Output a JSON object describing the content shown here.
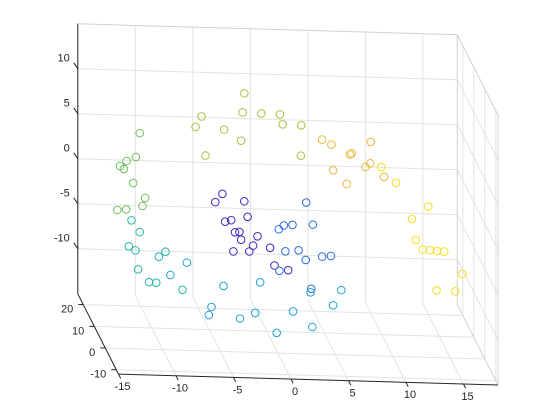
{
  "chart_data": {
    "type": "scatter3d",
    "xlim": [
      -15,
      18
    ],
    "ylim": [
      -12,
      25
    ],
    "zlim": [
      -15,
      15
    ],
    "xticks": [
      -15,
      -10,
      -5,
      0,
      5,
      10,
      15
    ],
    "yticks": [
      -10,
      0,
      10,
      20
    ],
    "zticks": [
      -10,
      -5,
      0,
      5,
      10
    ],
    "grid": true,
    "series": [
      {
        "color": "#3e26c0",
        "x": [
          -3,
          -2,
          -1,
          -3,
          -2,
          -1,
          -3,
          0,
          0,
          -1,
          -2,
          -4,
          -4,
          1,
          -1,
          -3
        ],
        "y": [
          2,
          5,
          8,
          11,
          14,
          17,
          19,
          3,
          7,
          12,
          18,
          6,
          15,
          1,
          20,
          9
        ],
        "z": [
          -3,
          -5,
          -4,
          -3,
          -5,
          -4,
          -2,
          -6,
          -5,
          -6,
          -6,
          -2,
          -2,
          -6,
          -3,
          -6
        ]
      },
      {
        "color": "#2a6de0",
        "x": [
          2,
          3,
          4,
          2,
          3,
          5,
          1,
          4,
          2,
          5,
          3,
          1
        ],
        "y": [
          2,
          6,
          10,
          14,
          18,
          4,
          9,
          16,
          20,
          12,
          1,
          5
        ],
        "z": [
          -4,
          -6,
          -3,
          -7,
          -5,
          -5,
          -8,
          -2,
          -6,
          -7,
          -8,
          -2
        ]
      },
      {
        "color": "#1ba3d6",
        "x": [
          -6,
          -3,
          0,
          3,
          5,
          -5,
          -1,
          2,
          -8,
          -3,
          0,
          4,
          6,
          -6
        ],
        "y": [
          0,
          3,
          1,
          0,
          2,
          8,
          10,
          7,
          14,
          18,
          16,
          12,
          5,
          20
        ],
        "z": [
          -11,
          -12,
          -13,
          -12,
          -10,
          -12,
          -13,
          -12,
          -10,
          -12,
          -11,
          -11,
          -9,
          -10
        ]
      },
      {
        "color": "#22b8a6",
        "x": [
          -11,
          -10,
          -12,
          -9,
          -11,
          -10,
          -12,
          -9,
          -8,
          -11
        ],
        "y": [
          2,
          6,
          10,
          14,
          18,
          21,
          4,
          8,
          3,
          12
        ],
        "z": [
          -8,
          -9,
          -6,
          -8,
          -5,
          -7,
          -5,
          -6,
          -9,
          -9
        ]
      },
      {
        "color": "#6cbf5a",
        "x": [
          -13,
          -12,
          -13,
          -11,
          -12,
          -10,
          -13,
          -11,
          -12,
          -10
        ],
        "y": [
          2,
          6,
          10,
          14,
          18,
          21,
          4,
          8,
          12,
          16
        ],
        "z": [
          0,
          2,
          -2,
          3,
          1,
          4,
          4,
          -1,
          3,
          -2
        ]
      },
      {
        "color": "#a9c23a",
        "x": [
          -6,
          -4,
          -2,
          0,
          2,
          -5,
          -3,
          1,
          3,
          -1,
          -6,
          2
        ],
        "y": [
          3,
          7,
          11,
          15,
          19,
          17,
          2,
          6,
          10,
          20,
          12,
          0
        ],
        "z": [
          6,
          8,
          9,
          8,
          7,
          7,
          8,
          9,
          8,
          9,
          7,
          7
        ]
      },
      {
        "color": "#eab83a",
        "x": [
          5,
          7,
          9,
          6,
          8,
          10,
          6,
          8,
          10,
          5
        ],
        "y": [
          2,
          6,
          10,
          14,
          18,
          20,
          0,
          4,
          8,
          12
        ],
        "z": [
          5,
          6,
          4,
          5,
          3,
          4,
          4,
          5,
          3,
          6
        ]
      },
      {
        "color": "#f2e01c",
        "x": [
          12,
          13,
          14,
          15,
          16,
          15,
          14,
          16,
          17,
          13,
          12,
          11
        ],
        "y": [
          0,
          4,
          8,
          12,
          16,
          20,
          2,
          6,
          10,
          14,
          18,
          21
        ],
        "z": [
          -2,
          -4,
          -5,
          -6,
          -7,
          -3,
          -8,
          -9,
          -8,
          -3,
          0,
          1
        ]
      }
    ]
  }
}
